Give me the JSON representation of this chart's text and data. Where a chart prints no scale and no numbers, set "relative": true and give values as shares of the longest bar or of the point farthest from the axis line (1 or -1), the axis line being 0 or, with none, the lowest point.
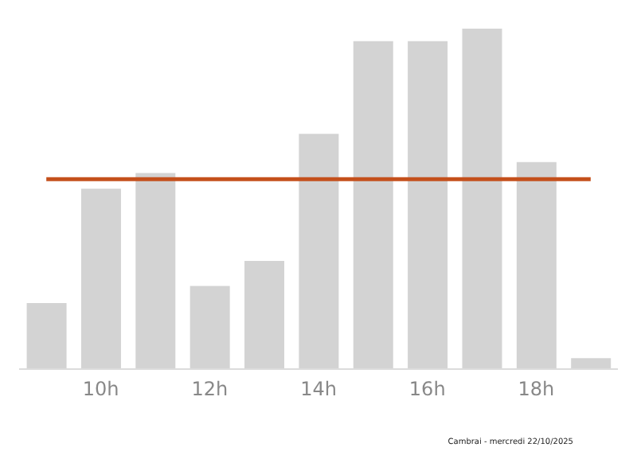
{
  "chart_data": {
    "type": "bar",
    "relative": true,
    "categories": [
      null,
      "10h",
      null,
      "12h",
      null,
      "14h",
      null,
      "16h",
      null,
      "18h",
      null
    ],
    "values": [
      0.194,
      0.53,
      0.576,
      0.244,
      0.318,
      0.691,
      0.963,
      0.963,
      1,
      0.608,
      0.032
    ],
    "color": "#d3d3d3",
    "ref_lines": [
      {
        "axis": "y",
        "value": 0.558,
        "color": "#c4501c"
      }
    ],
    "grid": false,
    "annotations": [
      "Cambrai - mercredi 22/10/2025"
    ]
  }
}
